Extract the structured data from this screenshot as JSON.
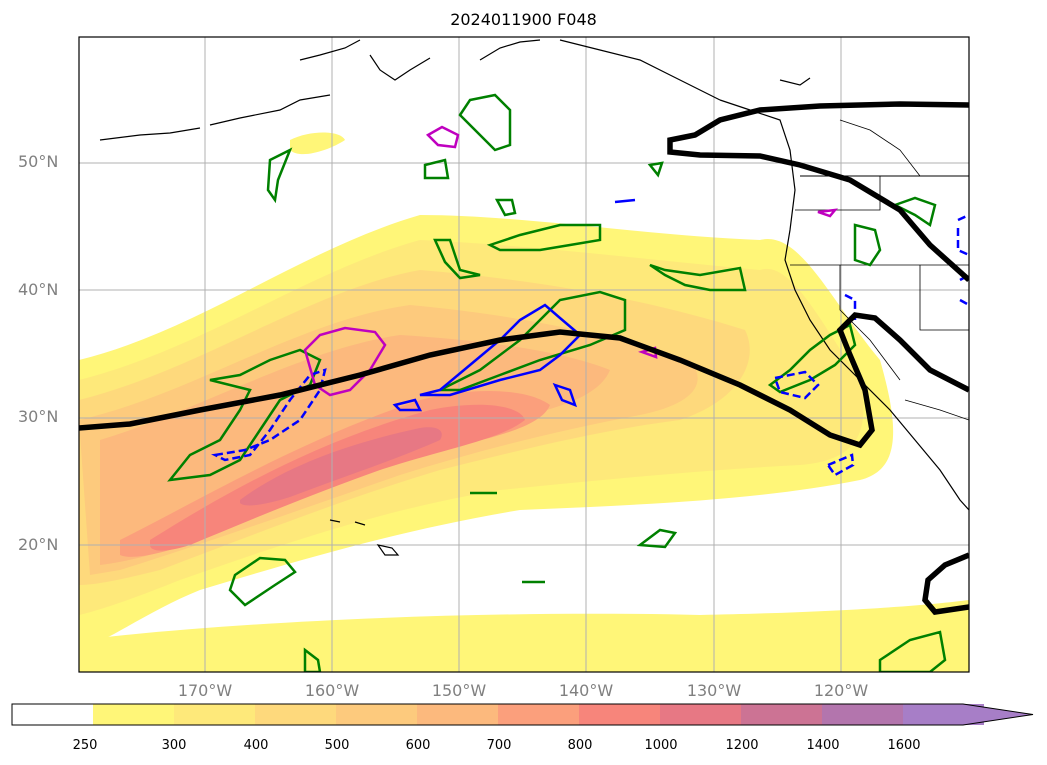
{
  "title": "2024011900 F048",
  "map": {
    "lat_labels": [
      "50°N",
      "40°N",
      "30°N",
      "20°N"
    ],
    "lon_labels": [
      "170°W",
      "160°W",
      "150°W",
      "140°W",
      "130°W",
      "120°W"
    ]
  },
  "colorbar": {
    "ticks": [
      "250",
      "300",
      "400",
      "500",
      "600",
      "700",
      "800",
      "1000",
      "1200",
      "1400",
      "1600"
    ],
    "colors": [
      "#ffffff",
      "#fff678",
      "#fee97a",
      "#fed97c",
      "#fdca7d",
      "#fcb97d",
      "#fb9f7c",
      "#f7857b",
      "#e77884",
      "#cc7394",
      "#b375ad",
      "#a77ec7"
    ]
  },
  "legend_colors": {
    "thick_contour": "#000000",
    "green_contours": "#008000",
    "blue_contours": "#0000ff",
    "magenta_contours": "#bf00bf"
  }
}
